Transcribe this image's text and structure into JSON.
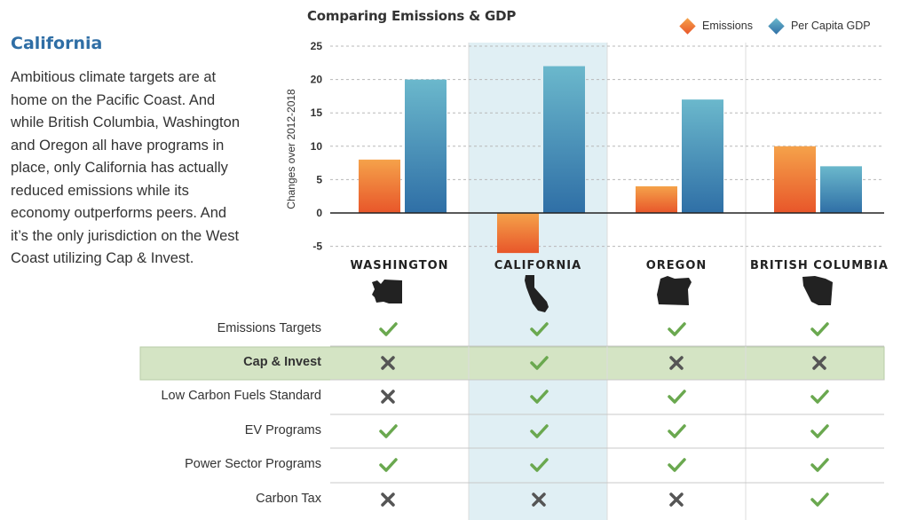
{
  "page": {
    "heading": "California",
    "intro": "Ambitious climate targets are at home on the Pacific Coast. And while British Columbia, Washington and Oregon all have programs in place, only California has actually reduced emissions while its economy outperforms peers. And it’s the only jurisdiction on the West Coast utilizing Cap & Invest."
  },
  "chart_data": {
    "type": "bar",
    "title": "Comparing Emissions & GDP",
    "ylabel": "Changes over 2012-2018",
    "xlabel": "",
    "categories": [
      "WASHINGTON",
      "CALIFORNIA",
      "OREGON",
      "BRITISH COLUMBIA"
    ],
    "series": [
      {
        "name": "Emissions",
        "values": [
          8,
          -6,
          4,
          10
        ],
        "color_top": "#f5a24a",
        "color_bottom": "#e8562a"
      },
      {
        "name": "Per Capita GDP",
        "values": [
          20,
          22,
          17,
          7
        ],
        "color_top": "#6bb8cc",
        "color_bottom": "#2f6fa6"
      }
    ],
    "ylim": [
      -6,
      25
    ],
    "yticks": [
      25,
      20,
      15,
      10,
      5,
      0,
      -5
    ],
    "grid": true,
    "legend": "top-right",
    "highlight_category": "CALIFORNIA"
  },
  "policy_table": {
    "columns": [
      "WASHINGTON",
      "CALIFORNIA",
      "OREGON",
      "BRITISH COLUMBIA"
    ],
    "highlight_row": "Cap & Invest",
    "rows": [
      {
        "label": "Emissions Targets",
        "values": [
          "yes",
          "yes",
          "yes",
          "yes"
        ]
      },
      {
        "label": "Cap & Invest",
        "values": [
          "no",
          "yes",
          "no",
          "no"
        ]
      },
      {
        "label": "Low Carbon Fuels Standard",
        "values": [
          "no",
          "yes",
          "yes",
          "yes"
        ]
      },
      {
        "label": "EV Programs",
        "values": [
          "yes",
          "yes",
          "yes",
          "yes"
        ]
      },
      {
        "label": "Power Sector Programs",
        "values": [
          "yes",
          "yes",
          "yes",
          "yes"
        ]
      },
      {
        "label": "Carbon Tax",
        "values": [
          "no",
          "no",
          "no",
          "yes"
        ]
      }
    ]
  },
  "colors": {
    "check": "#6aa84f",
    "cross": "#555555",
    "highlight_column": "#d6eaf0",
    "highlight_row": "#d4e4c4",
    "heading": "#2f6ea5"
  }
}
